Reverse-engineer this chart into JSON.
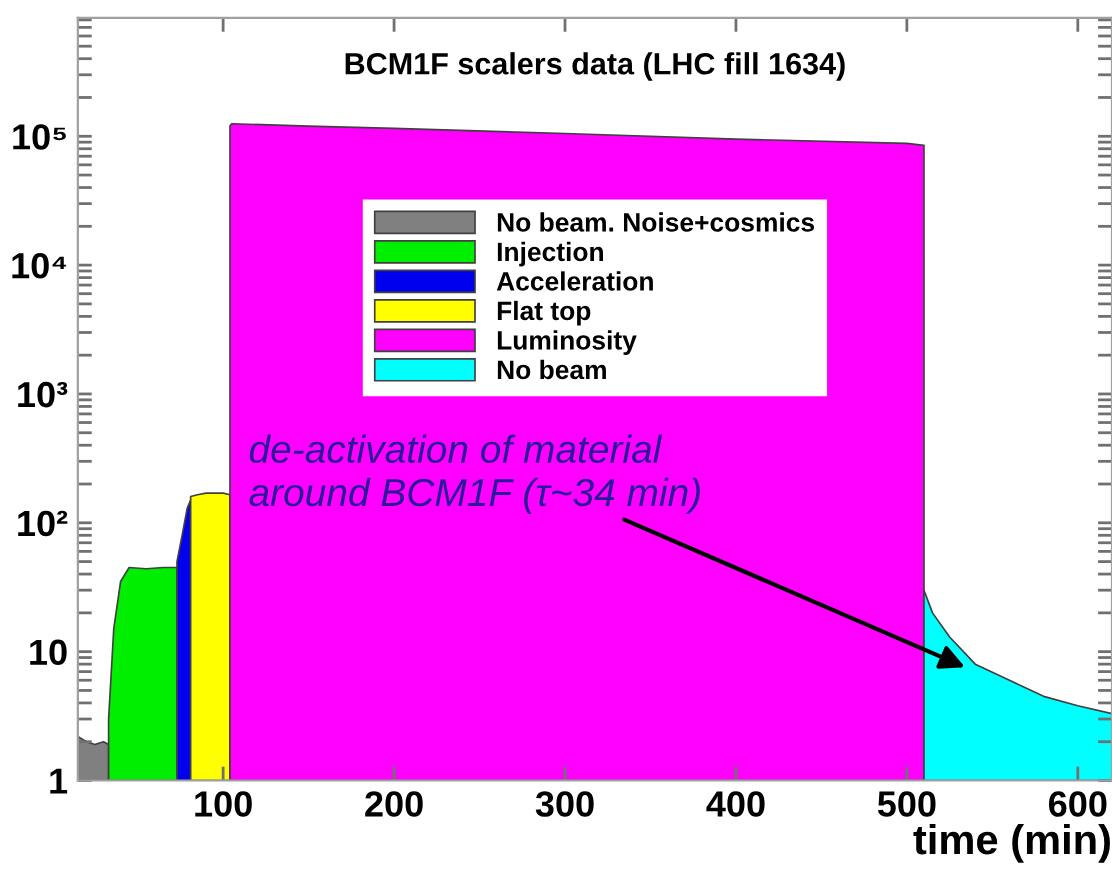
{
  "chart_data": {
    "type": "area",
    "title": "BCM1F scalers data (LHC fill 1634)",
    "xlabel": "time (min)",
    "log": "y",
    "xlim": [
      15,
      620
    ],
    "xticks": [
      100,
      200,
      300,
      400,
      500,
      600
    ],
    "ylim": [
      1,
      830000
    ],
    "yticks": [
      1,
      10,
      {
        "value": 100,
        "label": "10²"
      },
      {
        "value": 1000,
        "label": "10³"
      },
      {
        "value": 10000,
        "label": "10⁴"
      },
      {
        "value": 100000,
        "label": "10⁵"
      }
    ],
    "grid": false,
    "legend": "top",
    "series": [
      {
        "name": "No beam. Noise+cosmics",
        "color": "#808080",
        "x": [
          15,
          20,
          25,
          30,
          33
        ],
        "values": [
          2.2,
          2.0,
          1.9,
          2.0,
          1.9
        ]
      },
      {
        "name": "Injection",
        "color": "#00ee00",
        "x": [
          33,
          36,
          40,
          45,
          55,
          65,
          73
        ],
        "values": [
          3,
          15,
          35,
          45,
          44,
          45,
          45
        ]
      },
      {
        "name": "Acceleration",
        "color": "#0000ee",
        "x": [
          73,
          76,
          79,
          81
        ],
        "values": [
          50,
          80,
          130,
          150
        ]
      },
      {
        "name": "Flat top",
        "color": "#ffff00",
        "x": [
          81,
          85,
          90,
          100,
          104
        ],
        "values": [
          160,
          165,
          170,
          170,
          165
        ]
      },
      {
        "name": "Luminosity",
        "color": "#ff00ff",
        "x": [
          104,
          105,
          150,
          200,
          300,
          400,
          500,
          510
        ],
        "values": [
          120000,
          125000,
          120000,
          115000,
          105000,
          95000,
          88000,
          85000
        ]
      },
      {
        "name": "No beam",
        "color": "#00ffff",
        "x": [
          510,
          515,
          525,
          540,
          560,
          580,
          600,
          620
        ],
        "values": [
          30,
          20,
          13,
          8,
          6,
          4.5,
          3.8,
          3.3
        ]
      }
    ],
    "annotations": [
      {
        "text": "de-activation of material\naround BCM1F (τ~34 min)",
        "x": 540,
        "y": 7
      }
    ]
  }
}
